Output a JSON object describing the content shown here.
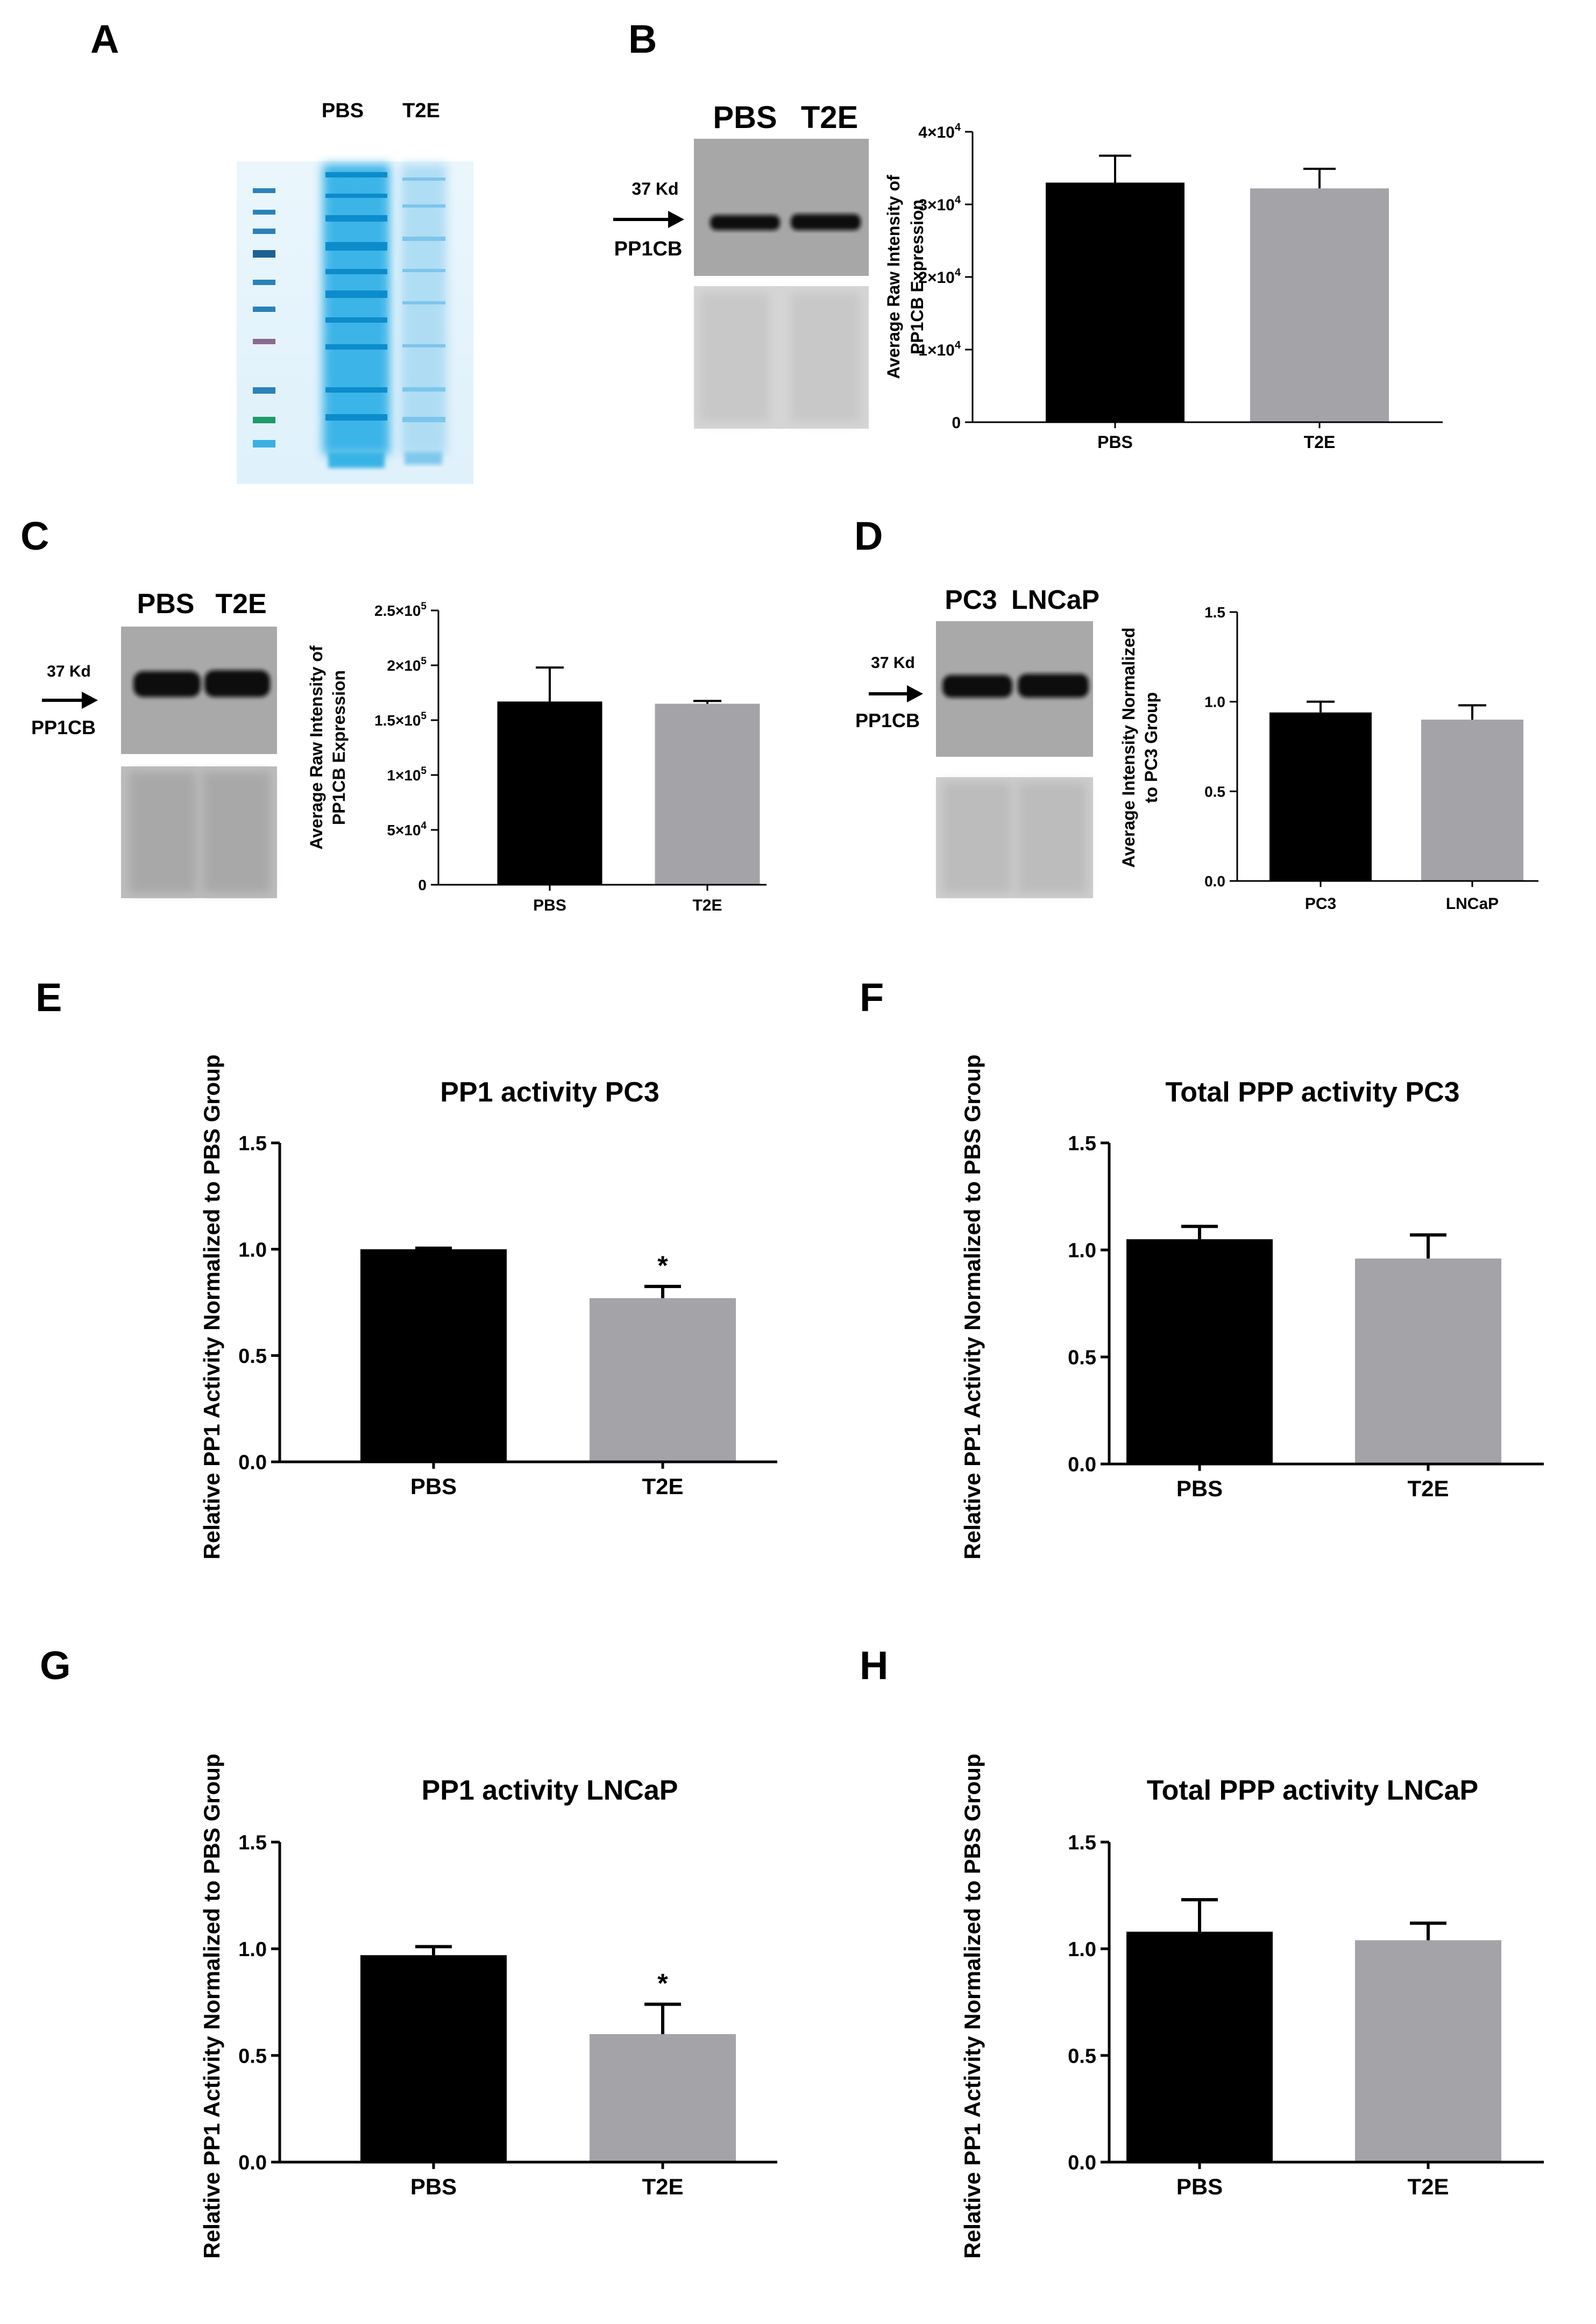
{
  "panel_labels": {
    "a": "A",
    "b": "B",
    "c": "C",
    "d": "D",
    "e": "E",
    "f": "F",
    "g": "G",
    "h": "H"
  },
  "blots": {
    "a": {
      "lane1": "PBS",
      "lane2": "T2E"
    },
    "b": {
      "lane1": "PBS",
      "lane2": "T2E",
      "marker": "37 Kd",
      "protein": "PP1CB"
    },
    "c": {
      "lane1": "PBS",
      "lane2": "T2E",
      "marker": "37 Kd",
      "protein": "PP1CB"
    },
    "d": {
      "lane1": "PC3",
      "lane2": "LNCaP",
      "marker": "37 Kd",
      "protein": "PP1CB"
    }
  },
  "colors": {
    "black_bar": "#000000",
    "grey_bar": "#a3a3a8",
    "gel_blue": "#1aa6e0",
    "blot_bg": "#9a9a9a"
  },
  "chart_data": [
    {
      "id": "b",
      "type": "bar",
      "title": "",
      "ylabel": [
        "Average Raw Intensity of",
        "PP1CB Expression"
      ],
      "categories": [
        "PBS",
        "T2E"
      ],
      "values": [
        33000,
        32200
      ],
      "errors": [
        3700,
        2700
      ],
      "ylim": [
        0,
        40000
      ],
      "ticks": [
        0,
        10000,
        20000,
        30000,
        40000
      ],
      "tick_labels": [
        {
          "main": "0",
          "sup": ""
        },
        {
          "main": "1×10",
          "sup": "4"
        },
        {
          "main": "2×10",
          "sup": "4"
        },
        {
          "main": "3×10",
          "sup": "4"
        },
        {
          "main": "4×10",
          "sup": "4"
        }
      ],
      "annotations": [
        "",
        ""
      ]
    },
    {
      "id": "c",
      "type": "bar",
      "title": "",
      "ylabel": [
        "Average Raw Intensity of",
        "PP1CB Expression"
      ],
      "categories": [
        "PBS",
        "T2E"
      ],
      "values": [
        167000,
        165000
      ],
      "errors": [
        31000,
        2500
      ],
      "ylim": [
        0,
        250000
      ],
      "ticks": [
        0,
        50000,
        100000,
        150000,
        200000,
        250000
      ],
      "tick_labels": [
        {
          "main": "0",
          "sup": ""
        },
        {
          "main": "5×10",
          "sup": "4"
        },
        {
          "main": "1×10",
          "sup": "5"
        },
        {
          "main": "1.5×10",
          "sup": "5"
        },
        {
          "main": "2×10",
          "sup": "5"
        },
        {
          "main": "2.5×10",
          "sup": "5"
        }
      ],
      "annotations": [
        "",
        ""
      ]
    },
    {
      "id": "d",
      "type": "bar",
      "title": "",
      "ylabel": [
        "Average Intensity Normalized",
        "to PC3 Group"
      ],
      "categories": [
        "PC3",
        "LNCaP"
      ],
      "values": [
        0.94,
        0.9
      ],
      "errors": [
        0.06,
        0.08
      ],
      "ylim": [
        0,
        1.5
      ],
      "ticks": [
        0,
        0.5,
        1,
        1.5
      ],
      "tick_labels": [
        {
          "main": "0.0",
          "sup": ""
        },
        {
          "main": "0.5",
          "sup": ""
        },
        {
          "main": "1.0",
          "sup": ""
        },
        {
          "main": "1.5",
          "sup": ""
        }
      ],
      "annotations": [
        "",
        ""
      ]
    },
    {
      "id": "e",
      "type": "bar",
      "title": "PP1 activity PC3",
      "ylabel": [
        "Relative PP1 Activity Normalized to PBS Group"
      ],
      "categories": [
        "PBS",
        "T2E"
      ],
      "values": [
        1.0,
        0.77
      ],
      "errors": [
        0.005,
        0.055
      ],
      "ylim": [
        0,
        1.5
      ],
      "ticks": [
        0,
        0.5,
        1,
        1.5
      ],
      "tick_labels": [
        {
          "main": "0.0",
          "sup": ""
        },
        {
          "main": "0.5",
          "sup": ""
        },
        {
          "main": "1.0",
          "sup": ""
        },
        {
          "main": "1.5",
          "sup": ""
        }
      ],
      "annotations": [
        "",
        "*"
      ]
    },
    {
      "id": "f",
      "type": "bar",
      "title": "Total PPP activity PC3",
      "ylabel": [
        "Relative PP1 Activity Normalized to PBS Group"
      ],
      "categories": [
        "PBS",
        "T2E"
      ],
      "values": [
        1.05,
        0.96
      ],
      "errors": [
        0.06,
        0.11
      ],
      "ylim": [
        0,
        1.5
      ],
      "ticks": [
        0,
        0.5,
        1,
        1.5
      ],
      "tick_labels": [
        {
          "main": "0.0",
          "sup": ""
        },
        {
          "main": "0.5",
          "sup": ""
        },
        {
          "main": "1.0",
          "sup": ""
        },
        {
          "main": "1.5",
          "sup": ""
        }
      ],
      "annotations": [
        "",
        ""
      ]
    },
    {
      "id": "g",
      "type": "bar",
      "title": "PP1 activity LNCaP",
      "ylabel": [
        "Relative PP1 Activity Normalized to PBS Group"
      ],
      "categories": [
        "PBS",
        "T2E"
      ],
      "values": [
        0.97,
        0.6
      ],
      "errors": [
        0.04,
        0.14
      ],
      "ylim": [
        0,
        1.5
      ],
      "ticks": [
        0,
        0.5,
        1,
        1.5
      ],
      "tick_labels": [
        {
          "main": "0.0",
          "sup": ""
        },
        {
          "main": "0.5",
          "sup": ""
        },
        {
          "main": "1.0",
          "sup": ""
        },
        {
          "main": "1.5",
          "sup": ""
        }
      ],
      "annotations": [
        "",
        "*"
      ]
    },
    {
      "id": "h",
      "type": "bar",
      "title": "Total PPP activity LNCaP",
      "ylabel": [
        "Relative PP1 Activity Normalized to PBS Group"
      ],
      "categories": [
        "PBS",
        "T2E"
      ],
      "values": [
        1.08,
        1.04
      ],
      "errors": [
        0.15,
        0.08
      ],
      "ylim": [
        0,
        1.5
      ],
      "ticks": [
        0,
        0.5,
        1,
        1.5
      ],
      "tick_labels": [
        {
          "main": "0.0",
          "sup": ""
        },
        {
          "main": "0.5",
          "sup": ""
        },
        {
          "main": "1.0",
          "sup": ""
        },
        {
          "main": "1.5",
          "sup": ""
        }
      ],
      "annotations": [
        "",
        ""
      ]
    }
  ]
}
